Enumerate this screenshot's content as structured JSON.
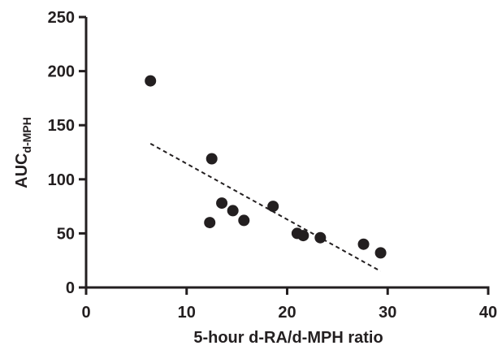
{
  "chart_data": {
    "type": "scatter",
    "title": "",
    "xlabel": "5-hour d-RA/d-MPH ratio",
    "ylabel_main": "AUC",
    "ylabel_sub": "d-MPH",
    "xlim": [
      0,
      40
    ],
    "ylim": [
      0,
      250
    ],
    "xticks": [
      0,
      10,
      20,
      30,
      40
    ],
    "yticks": [
      0,
      50,
      100,
      150,
      200,
      250
    ],
    "grid": false,
    "legend": "none",
    "colors": {
      "points": "#231f20",
      "axes": "#231f20",
      "trend": "#231f20"
    },
    "points": [
      {
        "x": 6.4,
        "y": 191
      },
      {
        "x": 12.3,
        "y": 60
      },
      {
        "x": 12.5,
        "y": 119
      },
      {
        "x": 13.5,
        "y": 78
      },
      {
        "x": 14.6,
        "y": 71
      },
      {
        "x": 15.7,
        "y": 62
      },
      {
        "x": 18.6,
        "y": 75
      },
      {
        "x": 21.0,
        "y": 50
      },
      {
        "x": 21.6,
        "y": 48
      },
      {
        "x": 23.3,
        "y": 46
      },
      {
        "x": 27.6,
        "y": 40
      },
      {
        "x": 29.3,
        "y": 32
      }
    ],
    "trendline": {
      "style": "dashed",
      "start": {
        "x": 6.4,
        "y": 133
      },
      "end": {
        "x": 29.3,
        "y": 15
      }
    }
  }
}
